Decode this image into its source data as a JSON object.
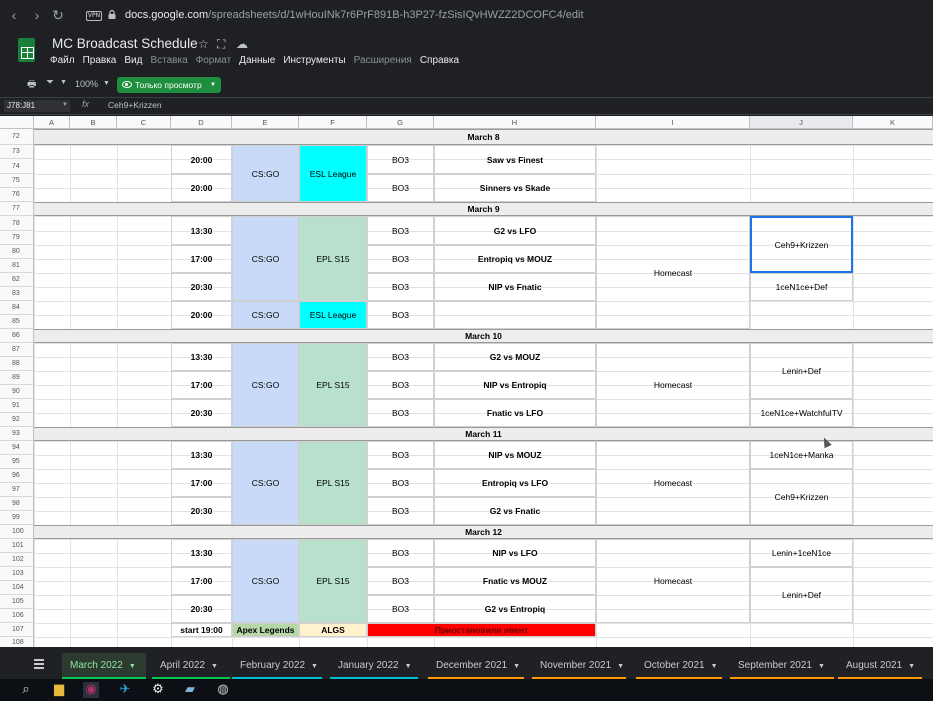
{
  "browser": {
    "url_host": "docs.google.com",
    "url_path": "/spreadsheets/d/1wHouINk7r6PrF891B-h3P27-fzSisIQvHWZZ2DCOFC4/edit",
    "vpn_badge": "VPN"
  },
  "app": {
    "title": "MC Broadcast Schedule",
    "menu": [
      "Файл",
      "Правка",
      "Вид",
      "Вставка",
      "Формат",
      "Данные",
      "Инструменты",
      "Расширения",
      "Справка"
    ],
    "menu_dim": [
      false,
      false,
      false,
      true,
      true,
      false,
      false,
      true,
      false
    ]
  },
  "toolbar": {
    "zoom": "100%",
    "view_only": "Только просмотр"
  },
  "formula": {
    "cell_ref": "J78:J81",
    "fx": "fx",
    "value": "Ceh9+Krizzen"
  },
  "grid": {
    "columns": [
      "A",
      "B",
      "C",
      "D",
      "E",
      "F",
      "G",
      "H",
      "I",
      "J",
      "K"
    ],
    "row_numbers": [
      72,
      73,
      74,
      75,
      76,
      77,
      78,
      79,
      80,
      81,
      82,
      83,
      84,
      85,
      86,
      87,
      88,
      89,
      90,
      91,
      92,
      93,
      94,
      95,
      96,
      97,
      98,
      99,
      100,
      101,
      102,
      103,
      104,
      105,
      106,
      107,
      108
    ],
    "date_headers": [
      "March 8",
      "March 9",
      "March 10",
      "March 11",
      "March 12"
    ],
    "times": [
      "20:00",
      "20:00",
      "13:30",
      "17:00",
      "20:30",
      "20:00",
      "13:30",
      "17:00",
      "20:30",
      "13:30",
      "17:00",
      "20:30",
      "13:30",
      "17:00",
      "20:30",
      "start 19:00"
    ],
    "formats": [
      "BO3",
      "BO3",
      "BO3",
      "BO3",
      "BO3",
      "BO3",
      "BO3",
      "BO3",
      "BO3",
      "BO3",
      "BO3",
      "BO3",
      "BO3",
      "BO3",
      "BO3"
    ],
    "matches": [
      "Saw vs Finest",
      "Sinners vs Skade",
      "G2 vs LFO",
      "Entropiq vs MOUZ",
      "NIP vs Fnatic",
      "G2 vs MOUZ",
      "NIP vs Entropiq",
      "Fnatic vs LFO",
      "NIP vs MOUZ",
      "Entropiq vs LFO",
      "G2 vs Fnatic",
      "NIP vs LFO",
      "Fnatic vs MOUZ",
      "G2 vs Entropiq"
    ],
    "games": [
      "CS:GO",
      "CS:GO",
      "CS:GO",
      "CS:GO",
      "CS:GO",
      "CS:GO",
      "Apex Legends"
    ],
    "events": [
      "ESL League",
      "EPL S15",
      "ESL League",
      "EPL S15",
      "EPL S15",
      "EPL S15",
      "ALGS"
    ],
    "cast_type": [
      "Homecast",
      "Homecast",
      "Homecast",
      "Homecast"
    ],
    "casters": [
      "Ceh9+Krizzen",
      "1ceN1ce+Def",
      "Lenin+Def",
      "1ceN1ce+WatchfulTV",
      "1ceN1ce+Manka",
      "Ceh9+Krizzen",
      "Lenin+1ceN1ce",
      "Lenin+Def"
    ],
    "note": "Приостановили ивент"
  },
  "colors": {
    "game_fill": "#c9daf8",
    "esl_fill": "#00ffff",
    "epl_fill": "#b7e1cd",
    "apex_fill": "#b6d7a8",
    "algs_fill": "#fff2cc",
    "note_fill": "#ff0000",
    "date_band": "#ededed",
    "accent_green": "#1e8e3e"
  },
  "tabs": [
    {
      "label": "March 2022",
      "active": true,
      "color": "#00c853"
    },
    {
      "label": "April 2022",
      "active": false,
      "color": "#00c853"
    },
    {
      "label": "February 2022",
      "active": false,
      "color": "#00bcd4"
    },
    {
      "label": "January 2022",
      "active": false,
      "color": "#00bcd4"
    },
    {
      "label": "December 2021",
      "active": false,
      "color": "#ff9800"
    },
    {
      "label": "November 2021",
      "active": false,
      "color": "#ff9800"
    },
    {
      "label": "October 2021",
      "active": false,
      "color": "#ff9800"
    },
    {
      "label": "September 2021",
      "active": false,
      "color": "#ff9800"
    },
    {
      "label": "August 2021",
      "active": false,
      "color": "#ff9800"
    }
  ],
  "taskbar_icons": [
    "search-icon",
    "file-explorer-icon",
    "media-player-icon",
    "telegram-icon",
    "settings-icon",
    "notepad-icon",
    "obs-icon"
  ]
}
